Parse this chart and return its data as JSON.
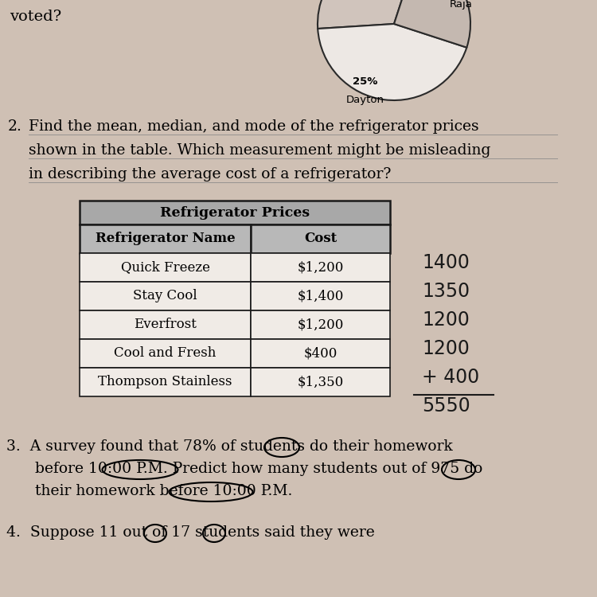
{
  "bg_color": "#cfc0b4",
  "question_number": "2.",
  "question_text_line1": "Find the mean, median, and mode of the refrigerator prices",
  "question_text_line2": "shown in the table. Which measurement might be misleading",
  "question_text_line3": "in describing the average cost of a refrigerator?",
  "table_title": "Refrigerator Prices",
  "table_headers": [
    "Refrigerator Name",
    "Cost"
  ],
  "table_rows": [
    [
      "Quick Freeze",
      "$1,200"
    ],
    [
      "Stay Cool",
      "$1,400"
    ],
    [
      "Everfrost",
      "$1,200"
    ],
    [
      "Cool and Fresh",
      "$400"
    ],
    [
      "Thompson Stainless",
      "$1,350"
    ]
  ],
  "handwritten_lines": [
    "1400",
    "1350",
    "1200",
    "1200",
    "+ 400",
    "5550"
  ],
  "problem3_line1": "3.  A survey found that 78% of students do their homework",
  "problem3_line2": "      before 10:00 P.M. Predict how many students out of 975 do",
  "problem3_line3": "      their homework before 10:00 P.M.",
  "problem4_text": "4.  Suppose 11 out of 17 students said they were",
  "pie_sizes": [
    31,
    44,
    25
  ],
  "pie_colors": [
    "#d0c4bc",
    "#ede8e4",
    "#c4b8b0"
  ],
  "top_text": "voted?"
}
